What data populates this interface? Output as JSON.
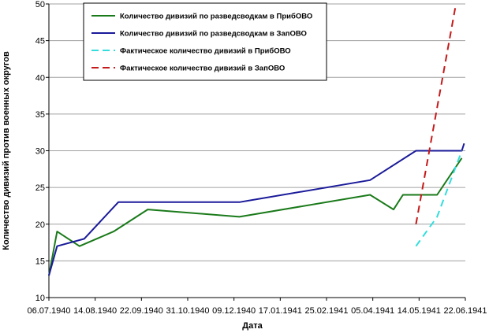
{
  "chart_data": {
    "type": "line",
    "title": "",
    "xlabel": "Дата",
    "ylabel": "Количество дивизий против военных округов",
    "ylim": [
      10,
      50
    ],
    "y_ticks": [
      "10",
      "15",
      "20",
      "25",
      "30",
      "35",
      "40",
      "45",
      "50"
    ],
    "x_ticks": [
      "06.07.1940",
      "14.08.1940",
      "22.09.1940",
      "31.10.1940",
      "09.12.1940",
      "17.01.1941",
      "25.02.1941",
      "05.04.1941",
      "14.05.1941",
      "22.06.1941"
    ],
    "grid": "horizontal",
    "legend_position": "top-center",
    "series": [
      {
        "name": "Количество дивизий по разведсводкам в ПрибОВО",
        "color": "#1a7a1a",
        "dash": "solid",
        "points": [
          [
            "1940-07-06",
            13
          ],
          [
            "1940-07-13",
            19
          ],
          [
            "1940-08-01",
            17
          ],
          [
            "1940-08-30",
            19
          ],
          [
            "1940-09-28",
            22
          ],
          [
            "1940-12-15",
            21
          ],
          [
            "1941-04-05",
            24
          ],
          [
            "1941-04-25",
            22
          ],
          [
            "1941-05-03",
            24
          ],
          [
            "1941-06-01",
            24
          ],
          [
            "1941-06-22",
            29
          ]
        ]
      },
      {
        "name": "Количество дивизий по разведсводкам в ЗапОВО",
        "color": "#1a1a9a",
        "dash": "solid",
        "points": [
          [
            "1940-07-06",
            13
          ],
          [
            "1940-07-13",
            17
          ],
          [
            "1940-08-05",
            18
          ],
          [
            "1940-09-03",
            23
          ],
          [
            "1940-12-15",
            23
          ],
          [
            "1941-04-05",
            26
          ],
          [
            "1941-05-14",
            30
          ],
          [
            "1941-06-22",
            30
          ],
          [
            "1941-06-24",
            31
          ]
        ]
      },
      {
        "name": "Фактическое количество дивизий в ПрибОВО",
        "color": "#33dddd",
        "dash": "dashed",
        "points": [
          [
            "1941-05-14",
            17
          ],
          [
            "1941-06-01",
            21
          ],
          [
            "1941-06-22",
            30
          ]
        ]
      },
      {
        "name": "Фактическое количество дивизий в ЗапОВО",
        "color": "#c41a1a",
        "dash": "dashed",
        "points": [
          [
            "1941-05-14",
            20
          ],
          [
            "1941-06-17",
            50
          ]
        ]
      }
    ]
  }
}
